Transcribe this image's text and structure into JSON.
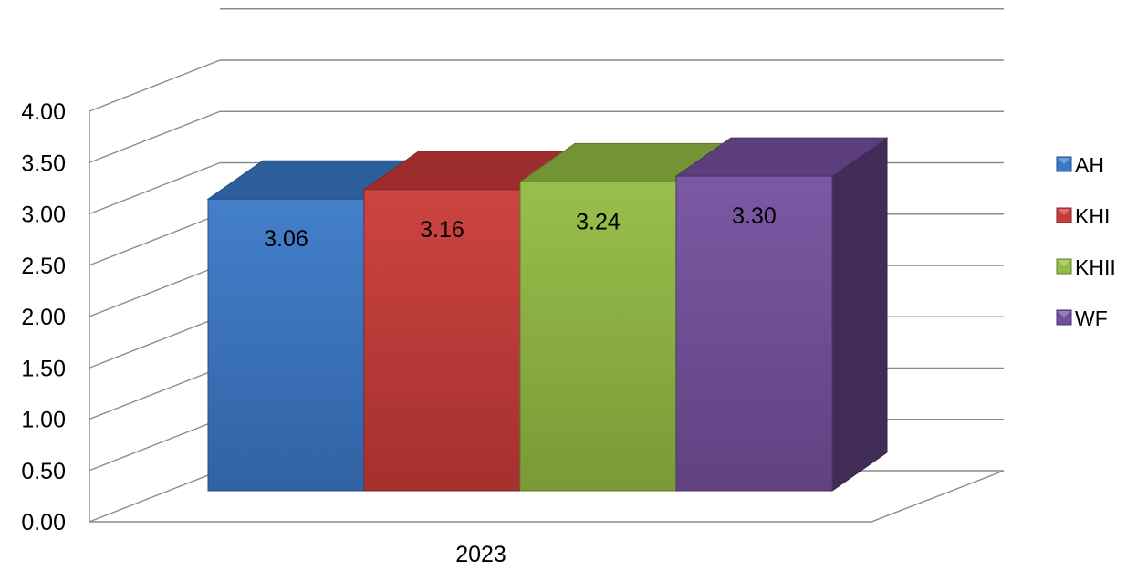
{
  "chart_data": {
    "type": "bar",
    "categories": [
      "2023"
    ],
    "series": [
      {
        "name": "AH",
        "values": [
          3.06
        ],
        "color": "#3A78C8"
      },
      {
        "name": "KHI",
        "values": [
          3.16
        ],
        "color": "#C93A38"
      },
      {
        "name": "KHII",
        "values": [
          3.24
        ],
        "color": "#93BC43"
      },
      {
        "name": "WF",
        "values": [
          3.3
        ],
        "color": "#75509E"
      }
    ],
    "data_labels": [
      "3.06",
      "3.16",
      "3.24",
      "3.30"
    ],
    "ylim": [
      0,
      4
    ],
    "y_ticks": [
      "0.00",
      "0.50",
      "1.00",
      "1.50",
      "2.00",
      "2.50",
      "3.00",
      "3.50",
      "4.00"
    ],
    "title": "",
    "xlabel": "",
    "ylabel": "",
    "grid": true,
    "legend_position": "right",
    "style": "3d-clustered-column"
  }
}
